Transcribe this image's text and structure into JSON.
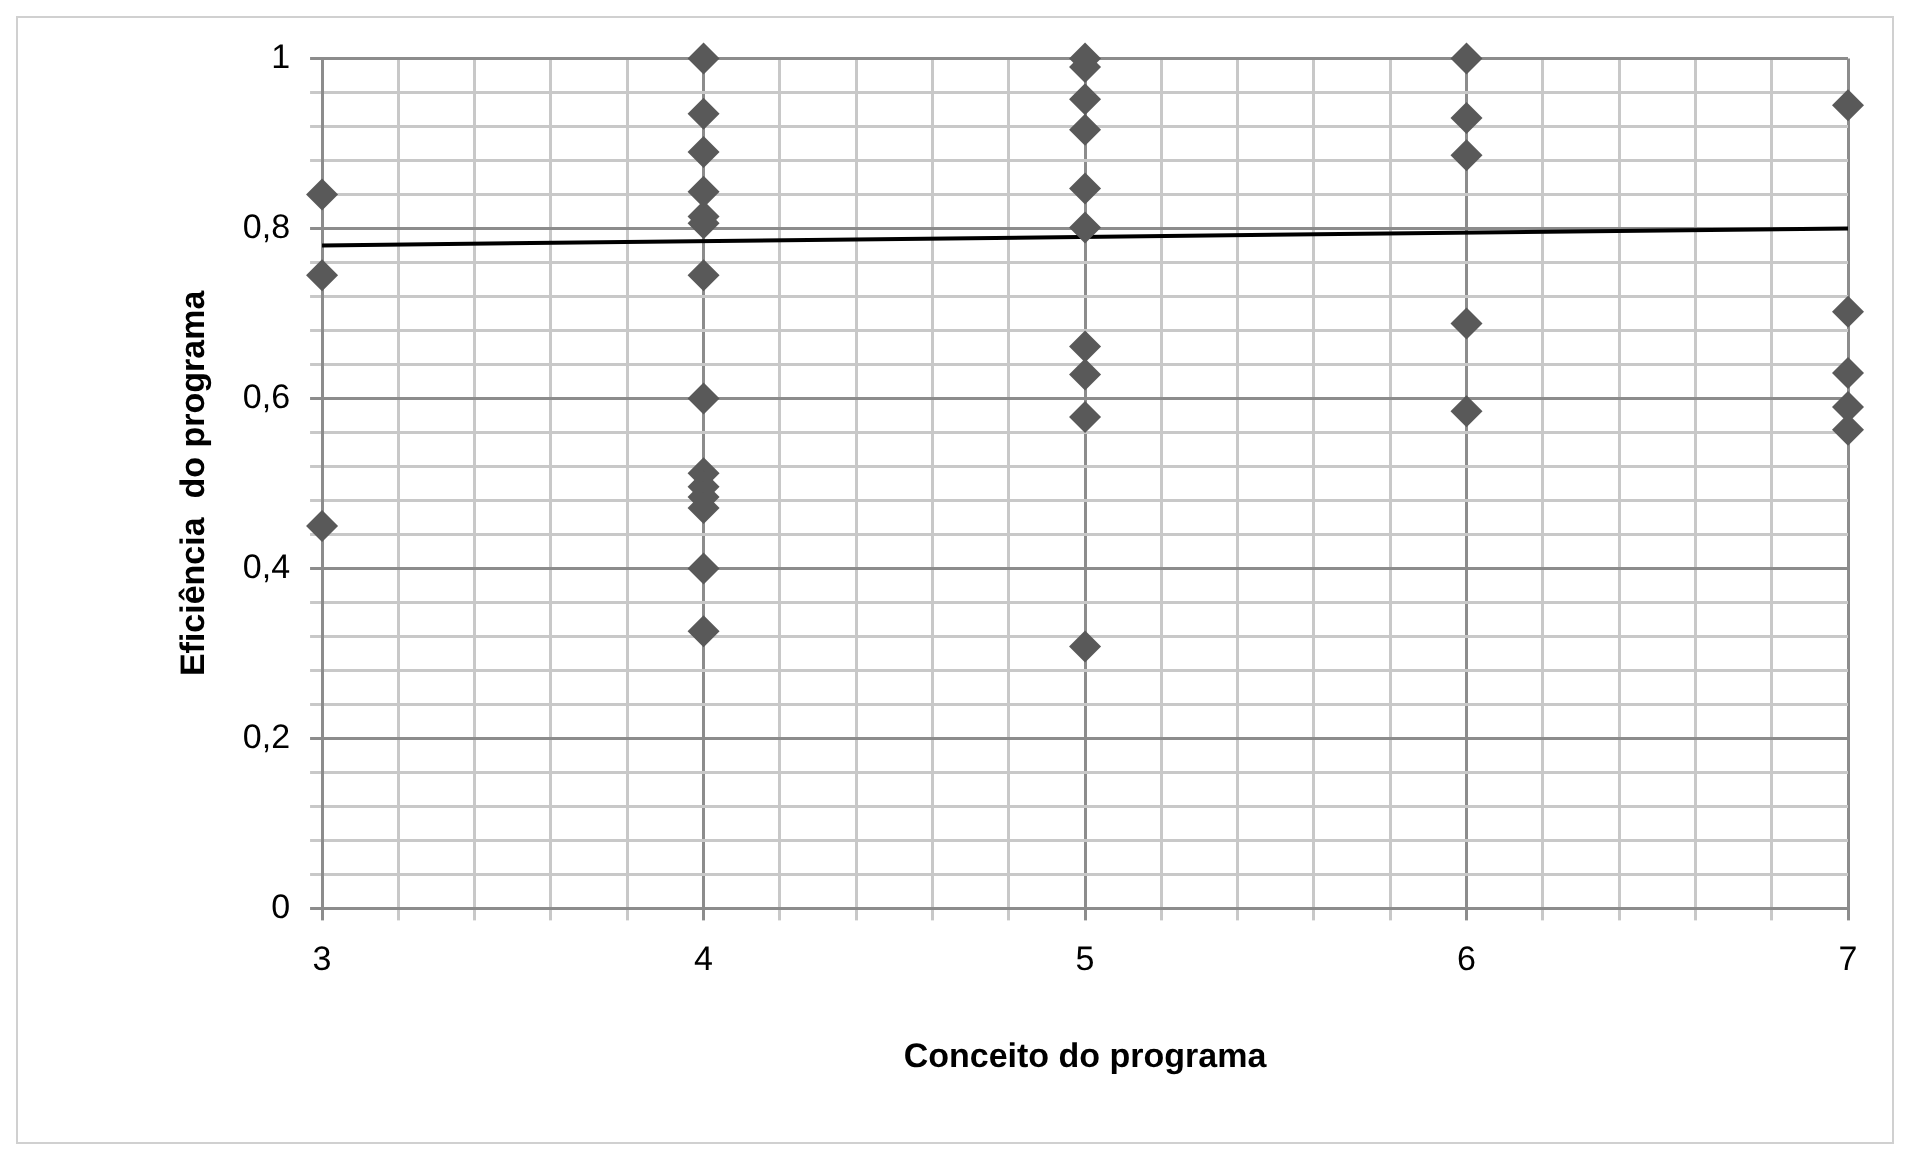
{
  "chart_data": {
    "type": "scatter",
    "xlabel": "Conceito do programa",
    "ylabel": "Eficiência  do programa",
    "marker": "diamond",
    "grid": true,
    "legend": false,
    "xlim": [
      3,
      7
    ],
    "xticks": [
      3,
      {
        "value": 3.2,
        "label": null
      },
      {
        "value": 3.4,
        "label": null
      },
      {
        "value": 3.6,
        "label": null
      },
      {
        "value": 3.8,
        "label": null
      },
      4,
      {
        "value": 4.2,
        "label": null
      },
      {
        "value": 4.4,
        "label": null
      },
      {
        "value": 4.6,
        "label": null
      },
      {
        "value": 4.8,
        "label": null
      },
      5,
      {
        "value": 5.2,
        "label": null
      },
      {
        "value": 5.4,
        "label": null
      },
      {
        "value": 5.6,
        "label": null
      },
      {
        "value": 5.8,
        "label": null
      },
      6,
      {
        "value": 6.2,
        "label": null
      },
      {
        "value": 6.4,
        "label": null
      },
      {
        "value": 6.6,
        "label": null
      },
      {
        "value": 6.8,
        "label": null
      },
      7
    ],
    "ylim": [
      0,
      1
    ],
    "yticks": [
      0,
      {
        "value": 0.04,
        "label": null
      },
      {
        "value": 0.08,
        "label": null
      },
      {
        "value": 0.12,
        "label": null
      },
      {
        "value": 0.16,
        "label": null
      },
      {
        "value": 0.2,
        "label": "0,2"
      },
      {
        "value": 0.24,
        "label": null
      },
      {
        "value": 0.28,
        "label": null
      },
      {
        "value": 0.32,
        "label": null
      },
      {
        "value": 0.36,
        "label": null
      },
      {
        "value": 0.4,
        "label": "0,4"
      },
      {
        "value": 0.44,
        "label": null
      },
      {
        "value": 0.48,
        "label": null
      },
      {
        "value": 0.52,
        "label": null
      },
      {
        "value": 0.56,
        "label": null
      },
      {
        "value": 0.6,
        "label": "0,6"
      },
      {
        "value": 0.64,
        "label": null
      },
      {
        "value": 0.68,
        "label": null
      },
      {
        "value": 0.72,
        "label": null
      },
      {
        "value": 0.76,
        "label": null
      },
      {
        "value": 0.8,
        "label": "0,8"
      },
      {
        "value": 0.84,
        "label": null
      },
      {
        "value": 0.88,
        "label": null
      },
      {
        "value": 0.92,
        "label": null
      },
      {
        "value": 0.96,
        "label": null
      },
      1
    ],
    "series": [
      {
        "type": "scatter",
        "color": "#595959",
        "x": [
          3,
          3,
          3,
          4,
          4,
          4,
          4,
          4,
          4,
          4,
          4,
          4,
          4,
          4,
          4,
          4,
          4,
          5,
          5,
          5,
          5,
          5,
          5,
          5,
          5,
          5,
          5,
          6,
          6,
          6,
          6,
          6,
          7,
          7,
          7,
          7,
          7
        ],
        "values": [
          0.84,
          0.745,
          0.45,
          1.0,
          0.935,
          0.89,
          0.843,
          0.814,
          0.806,
          0.745,
          0.6,
          0.512,
          0.496,
          0.484,
          0.471,
          0.4,
          0.326,
          1.0,
          0.99,
          0.952,
          0.916,
          0.847,
          0.801,
          0.661,
          0.628,
          0.578,
          0.308,
          1.0,
          0.93,
          0.886,
          0.688,
          0.585,
          0.945,
          0.702,
          0.63,
          0.59,
          0.563
        ]
      },
      {
        "type": "line",
        "color": "#000000",
        "marker": "none",
        "x": [
          3,
          7
        ],
        "values": [
          0.78,
          0.8
        ]
      }
    ]
  }
}
